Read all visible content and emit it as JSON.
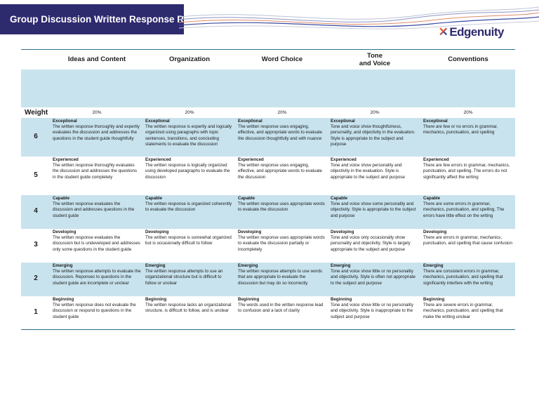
{
  "header": {
    "title": "Group Discussion Written Response Rubric",
    "logo_text": "Edgenuity",
    "logo_icon": "edgenuity-x-icon",
    "banner_color": "#2e2a6e",
    "accent_color": "#c8e3ee"
  },
  "table": {
    "columns": [
      "Ideas and Content",
      "Organization",
      "Word Choice",
      "Tone\nand Voice",
      "Conventions"
    ],
    "weight_label": "Weight",
    "weights": [
      "20%",
      "20%",
      "20%",
      "20%",
      "20%"
    ],
    "rows": [
      {
        "score": "6",
        "cells": [
          {
            "level": "Exceptional",
            "text": "The written response thoroughly and expertly evaluates the discussion and addresses the questions in the student guide thoughtfully"
          },
          {
            "level": "Exceptional",
            "text": "The written response is expertly and logically organized using paragraphs with topic sentences, transitions, and concluding statements to evaluate the discussion"
          },
          {
            "level": "Exceptional",
            "text": "The written response uses engaging, effective, and appropriate words to evaluate the discussion thoughtfully and with nuance"
          },
          {
            "level": "Exceptional",
            "text": "Tone and voice show thoughtfulness, personality, and objectivity in the evaluation. Style is appropriate to the subject and purpose"
          },
          {
            "level": "Exceptional",
            "text": "There are few or no errors in grammar, mechanics, punctuation, and spelling"
          }
        ]
      },
      {
        "score": "5",
        "cells": [
          {
            "level": "Experienced",
            "text": "The written response thoroughly evaluates the discussion and addresses the questions in the student guide completely"
          },
          {
            "level": "Experienced",
            "text": "The written response is logically organized using developed paragraphs to evaluate the discussion"
          },
          {
            "level": "Experienced",
            "text": "The written response uses engaging, effective, and appropriate words to evaluate the discussion"
          },
          {
            "level": "Experienced",
            "text": "Tone and voice show personality and objectivity in the evaluation. Style is appropriate to the subject and purpose"
          },
          {
            "level": "Experienced",
            "text": "There are few errors in grammar, mechanics, punctuation, and spelling. The errors do not significantly affect the writing"
          }
        ]
      },
      {
        "score": "4",
        "cells": [
          {
            "level": "Capable",
            "text": "The written response evaluates the discussion and addresses questions in the student guide"
          },
          {
            "level": "Capable",
            "text": "The written response is organized coherently to evaluate the discussion"
          },
          {
            "level": "Capable",
            "text": "The written response uses appropriate words to evaluate the discussion"
          },
          {
            "level": "Capable",
            "text": "Tone and voice show some personality and objectivity. Style is appropriate to the subject and purpose"
          },
          {
            "level": "Capable",
            "text": "There are some errors in grammar, mechanics, punctuation, and spelling. The errors have little effect on the writing"
          }
        ]
      },
      {
        "score": "3",
        "cells": [
          {
            "level": "Developing",
            "text": "The written response evaluates the discussion but is undeveloped and addresses only some questions in the student guide"
          },
          {
            "level": "Developing",
            "text": "The written response is somewhat organized but is occasionally difficult to follow"
          },
          {
            "level": "Developing",
            "text": "The written response uses appropriate words to evaluate the discussion partially or incompletely"
          },
          {
            "level": "Developing",
            "text": "Tone and voice only occasionally show personality and objectivity. Style is largely appropriate to the subject and purpose"
          },
          {
            "level": "Developing",
            "text": "There are errors in grammar, mechanics, punctuation, and spelling that cause confusion"
          }
        ]
      },
      {
        "score": "2",
        "cells": [
          {
            "level": "Emerging",
            "text": "The written response attempts to evaluate the discussion. Reponses to questions in the student guide are incomplete or unclear"
          },
          {
            "level": "Emerging",
            "text": "The written response attempts to use an organizational structure but is difficult to follow or unclear"
          },
          {
            "level": "Emerging",
            "text": "The written response attempts to use words that are appropriate to evaluate the discussion but may do so incorrectly"
          },
          {
            "level": "Emerging",
            "text": "Tone and voice show little or no personality and objectivity. Style is often not appropriate to the subject and purpose"
          },
          {
            "level": "Emerging",
            "text": "There are consistent errors in grammar, mechanics, punctuation, and spelling that significantly interfere with the writing"
          }
        ]
      },
      {
        "score": "1",
        "cells": [
          {
            "level": "Beginning",
            "text": "The written response does not evaluate the discussion or respond to questions in the student guide"
          },
          {
            "level": "Beginning",
            "text": "The written response lacks an organizational structure, is difficult to follow, and is unclear"
          },
          {
            "level": "Beginning",
            "text": "The words used in the written response lead to confusion and a lack of clarity"
          },
          {
            "level": "Beginning",
            "text": "Tone and voice show little or no personality and objectivity. Style is inappropriate to the subject and purpose"
          },
          {
            "level": "Beginning",
            "text": "There are severe errors in grammar, mechanics, punctuation, and spelling that make the writing unclear"
          }
        ]
      }
    ]
  }
}
